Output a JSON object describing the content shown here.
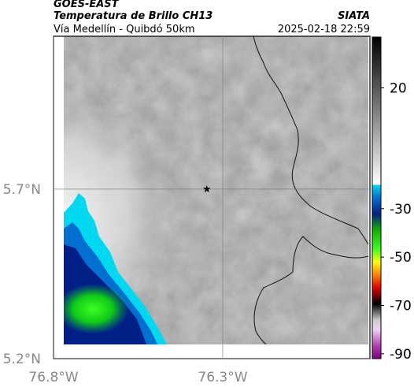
{
  "header": {
    "title": "GOES-EAST",
    "subtitle": "Temperatura de Brillo CH13",
    "source": "SIATA",
    "location": "Vía Medellín - Quibdó 50km",
    "datetime": "2025-02-18 22:59"
  },
  "map": {
    "lon_range": [
      -76.8,
      -75.865
    ],
    "lat_range": [
      5.2,
      6.151
    ],
    "lon_ticks": [
      {
        "value": -76.8,
        "label": "76.8°W"
      },
      {
        "value": -76.3,
        "label": "76.3°W"
      }
    ],
    "lat_ticks": [
      {
        "value": 5.2,
        "label": "5.2°N"
      },
      {
        "value": 5.7,
        "label": "5.7°N"
      }
    ],
    "marker": {
      "lon": -76.347,
      "lat": 5.7
    }
  },
  "colorbar": {
    "lim": [
      -92,
      41
    ],
    "ticks": [
      20,
      -30,
      -50,
      -70,
      -90
    ]
  }
}
